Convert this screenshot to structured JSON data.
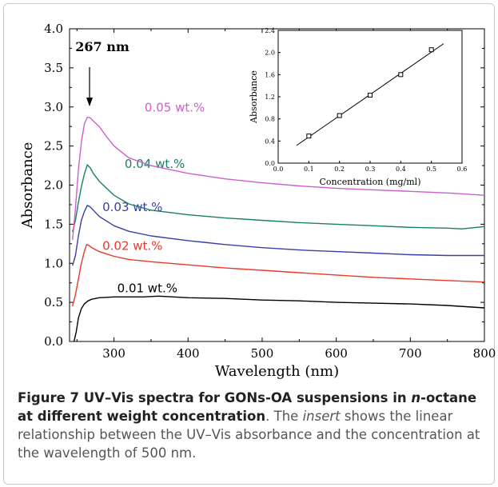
{
  "chart_data": [
    {
      "type": "line",
      "xlabel": "Wavelength (nm)",
      "ylabel": "Absorbance",
      "xlim": [
        240,
        800
      ],
      "ylim": [
        0.0,
        4.0
      ],
      "xticks": [
        300,
        400,
        500,
        600,
        700,
        800
      ],
      "yticks": [
        0.0,
        0.5,
        1.0,
        1.5,
        2.0,
        2.5,
        3.0,
        3.5,
        4.0
      ],
      "xtick_labels": [
        "300",
        "400",
        "500",
        "600",
        "700",
        "800"
      ],
      "ytick_labels": [
        "0.0",
        "0.5",
        "1.0",
        "1.5",
        "2.0",
        "2.5",
        "3.0",
        "3.5",
        "4.0"
      ],
      "annotation": {
        "text": "267 nm",
        "x": 267
      },
      "series": [
        {
          "name": "0.01 wt.%",
          "color": "#000000",
          "x": [
            246,
            249,
            252,
            256,
            260,
            265,
            270,
            280,
            300,
            320,
            340,
            360,
            380,
            400,
            450,
            500,
            550,
            600,
            650,
            700,
            750,
            800
          ],
          "y": [
            0.0,
            0.12,
            0.3,
            0.42,
            0.48,
            0.52,
            0.54,
            0.56,
            0.57,
            0.57,
            0.57,
            0.58,
            0.57,
            0.56,
            0.55,
            0.53,
            0.52,
            0.5,
            0.49,
            0.48,
            0.46,
            0.43
          ]
        },
        {
          "name": "0.02 wt.%",
          "color": "#e8392b",
          "x": [
            244,
            248,
            252,
            256,
            260,
            263,
            266,
            270,
            280,
            300,
            320,
            350,
            400,
            450,
            500,
            550,
            600,
            650,
            700,
            750,
            800
          ],
          "y": [
            0.45,
            0.6,
            0.8,
            1.0,
            1.15,
            1.24,
            1.23,
            1.2,
            1.15,
            1.09,
            1.05,
            1.02,
            0.98,
            0.94,
            0.91,
            0.88,
            0.85,
            0.82,
            0.8,
            0.78,
            0.76
          ]
        },
        {
          "name": "0.03 wt.%",
          "color": "#3a3ea8",
          "x": [
            244,
            248,
            252,
            256,
            260,
            264,
            268,
            272,
            280,
            300,
            320,
            350,
            400,
            450,
            500,
            550,
            600,
            650,
            700,
            750,
            800
          ],
          "y": [
            0.97,
            1.1,
            1.35,
            1.55,
            1.66,
            1.74,
            1.72,
            1.68,
            1.6,
            1.48,
            1.41,
            1.35,
            1.29,
            1.24,
            1.2,
            1.17,
            1.15,
            1.13,
            1.11,
            1.1,
            1.1
          ]
        },
        {
          "name": "0.04 wt.%",
          "color": "#17806a",
          "x": [
            244,
            248,
            252,
            256,
            260,
            264,
            268,
            272,
            280,
            300,
            320,
            350,
            400,
            450,
            500,
            550,
            600,
            650,
            700,
            750,
            770,
            800
          ],
          "y": [
            1.4,
            1.55,
            1.78,
            1.98,
            2.14,
            2.26,
            2.22,
            2.15,
            2.05,
            1.87,
            1.76,
            1.68,
            1.62,
            1.58,
            1.55,
            1.52,
            1.5,
            1.48,
            1.46,
            1.45,
            1.44,
            1.47
          ]
        },
        {
          "name": "0.05 wt.%",
          "color": "#cc5fcc",
          "x": [
            244,
            248,
            252,
            256,
            260,
            264,
            268,
            272,
            280,
            290,
            300,
            320,
            350,
            400,
            450,
            500,
            550,
            600,
            650,
            700,
            750,
            800
          ],
          "y": [
            1.3,
            1.7,
            2.2,
            2.55,
            2.78,
            2.87,
            2.86,
            2.82,
            2.75,
            2.62,
            2.5,
            2.35,
            2.25,
            2.15,
            2.08,
            2.03,
            1.99,
            1.96,
            1.94,
            1.92,
            1.9,
            1.87
          ]
        }
      ]
    },
    {
      "type": "scatter",
      "xlabel": "Concentration (mg/ml)",
      "ylabel": "Absorbance",
      "xlim": [
        0.0,
        0.6
      ],
      "ylim": [
        0.0,
        2.4
      ],
      "xtick_labels": [
        "0.0",
        "0.1",
        "0.2",
        "0.3",
        "0.4",
        "0.5",
        "0.6"
      ],
      "ytick_labels": [
        "0.0",
        "0.4",
        "0.8",
        "1.2",
        "1.6",
        "2.0",
        "2.4"
      ],
      "x": [
        0.1,
        0.2,
        0.3,
        0.4,
        0.5
      ],
      "y": [
        0.49,
        0.86,
        1.23,
        1.6,
        2.05
      ],
      "fit_line": {
        "x": [
          0.06,
          0.54
        ],
        "y": [
          0.32,
          2.16
        ]
      }
    }
  ],
  "caption": {
    "bold_prefix": "Figure 7 UV–Vis spectra for GONs-OA suspensions in ",
    "bold_italic": "n",
    "bold_suffix": "-octane at different weight concentration",
    "text_1": ". The ",
    "italic": "insert",
    "text_2": " shows the linear relationship between the UV–Vis absorbance and the concentration at the wavelength of 500 nm."
  }
}
